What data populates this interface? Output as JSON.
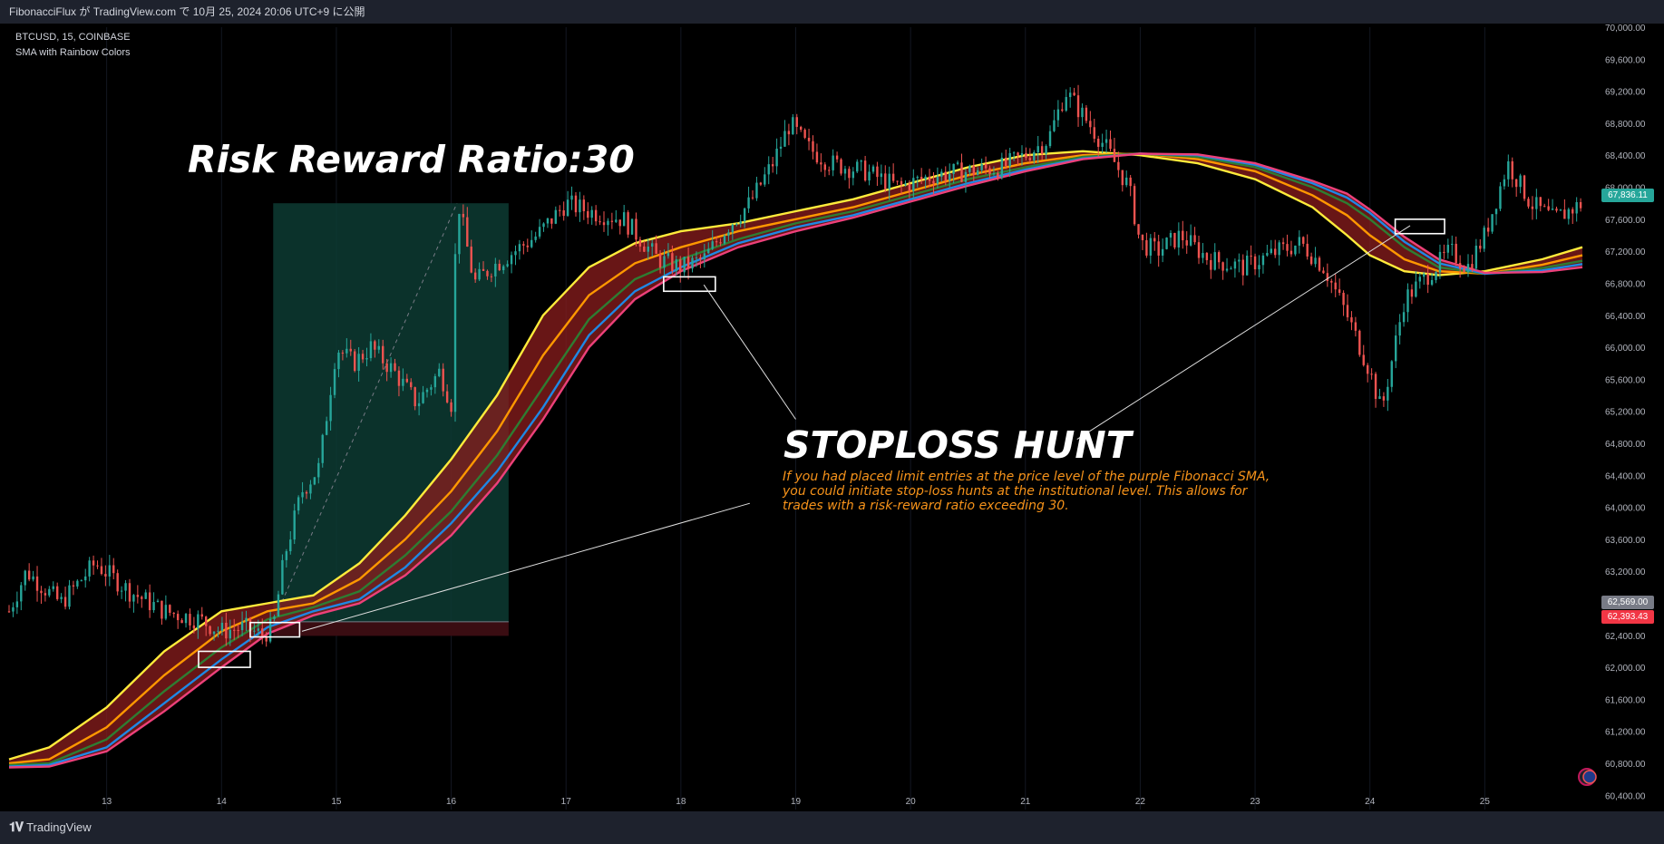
{
  "header": {
    "publish_info": "FibonacciFlux が TradingView.com で 10月 25, 2024 20:06 UTC+9 に公開"
  },
  "legend": {
    "symbol_line": "BTCUSD, 15, COINBASE",
    "indicator_name": "SMA with Rainbow Colors"
  },
  "annotations": {
    "risk_reward": "Risk Reward Ratio:30",
    "stoploss_title": "STOPLOSS HUNT",
    "stoploss_desc": "If you had placed limit entries at the price level of the purple Fibonacci SMA, you could initiate stop-loss hunts at the institutional level. This allows for trades with a risk-reward ratio exceeding 30."
  },
  "price_labels": {
    "current": "67,836.11",
    "entry": "62,569.00",
    "stop": "62,393.43"
  },
  "footer": {
    "brand": "TradingView"
  },
  "colors": {
    "background": "#000000",
    "bar": "#1e222d",
    "up_candle": "#26a69a",
    "down_candle": "#ef5350",
    "band_fill": "#8b1e1e",
    "sma_yellow": "#ffeb3b",
    "sma_orange": "#ff9800",
    "sma_green": "#2e7d32",
    "sma_blue": "#1e88e5",
    "sma_pink": "#ec407a",
    "profit_zone": "#0d3b33",
    "loss_zone": "#3a0d12",
    "current_label": "#26a69a",
    "entry_label": "#787b86",
    "stop_label": "#f23645"
  },
  "chart_data": {
    "type": "candlestick",
    "symbol": "BTCUSD",
    "interval": "15",
    "exchange": "COINBASE",
    "x_ticks": [
      "13",
      "14",
      "15",
      "16",
      "17",
      "18",
      "19",
      "20",
      "21",
      "22",
      "23",
      "24",
      "25"
    ],
    "y_ticks": [
      "60,400.00",
      "60,800.00",
      "61,200.00",
      "61,600.00",
      "62,000.00",
      "62,400.00",
      "62,800.00",
      "63,200.00",
      "63,600.00",
      "64,000.00",
      "64,400.00",
      "64,800.00",
      "65,200.00",
      "65,600.00",
      "66,000.00",
      "66,400.00",
      "66,800.00",
      "67,200.00",
      "67,600.00",
      "68,000.00",
      "68,400.00",
      "68,800.00",
      "69,200.00",
      "69,600.00",
      "70,000.00"
    ],
    "ylim": [
      60200,
      70000
    ],
    "xlim": [
      12.15,
      25.85
    ],
    "price_path": [
      [
        12.15,
        62700
      ],
      [
        12.3,
        63200
      ],
      [
        12.6,
        62800
      ],
      [
        12.9,
        63300
      ],
      [
        13.2,
        62950
      ],
      [
        13.5,
        62700
      ],
      [
        13.8,
        62600
      ],
      [
        14.0,
        62450
      ],
      [
        14.2,
        62500
      ],
      [
        14.35,
        62400
      ],
      [
        14.45,
        62500
      ],
      [
        14.55,
        63400
      ],
      [
        14.7,
        64200
      ],
      [
        14.85,
        64500
      ],
      [
        15.0,
        66000
      ],
      [
        15.15,
        65800
      ],
      [
        15.3,
        66000
      ],
      [
        15.5,
        65700
      ],
      [
        15.7,
        65300
      ],
      [
        15.9,
        65700
      ],
      [
        16.0,
        65300
      ],
      [
        16.05,
        67900
      ],
      [
        16.2,
        66800
      ],
      [
        16.35,
        67000
      ],
      [
        16.55,
        67200
      ],
      [
        16.75,
        67400
      ],
      [
        17.0,
        67800
      ],
      [
        17.2,
        67700
      ],
      [
        17.5,
        67600
      ],
      [
        17.8,
        67100
      ],
      [
        18.0,
        67000
      ],
      [
        18.2,
        67100
      ],
      [
        18.4,
        67500
      ],
      [
        18.6,
        67800
      ],
      [
        18.8,
        68300
      ],
      [
        18.95,
        68800
      ],
      [
        19.1,
        68500
      ],
      [
        19.3,
        68300
      ],
      [
        19.6,
        68200
      ],
      [
        19.9,
        68000
      ],
      [
        20.2,
        68150
      ],
      [
        20.5,
        68200
      ],
      [
        20.8,
        68250
      ],
      [
        21.0,
        68400
      ],
      [
        21.2,
        68600
      ],
      [
        21.35,
        69200
      ],
      [
        21.5,
        68900
      ],
      [
        21.7,
        68500
      ],
      [
        21.9,
        68000
      ],
      [
        22.0,
        67300
      ],
      [
        22.15,
        67200
      ],
      [
        22.35,
        67400
      ],
      [
        22.6,
        67100
      ],
      [
        22.9,
        67000
      ],
      [
        23.2,
        67200
      ],
      [
        23.4,
        67300
      ],
      [
        23.6,
        67000
      ],
      [
        23.8,
        66400
      ],
      [
        24.0,
        65700
      ],
      [
        24.1,
        65200
      ],
      [
        24.3,
        66600
      ],
      [
        24.5,
        66900
      ],
      [
        24.7,
        67200
      ],
      [
        24.85,
        67000
      ],
      [
        25.0,
        67400
      ],
      [
        25.2,
        68300
      ],
      [
        25.4,
        67800
      ],
      [
        25.6,
        67600
      ],
      [
        25.85,
        67800
      ]
    ],
    "sma_lines": [
      {
        "name": "yellow",
        "color": "#ffeb3b",
        "points": [
          [
            12.15,
            60850
          ],
          [
            12.5,
            61000
          ],
          [
            13.0,
            61500
          ],
          [
            13.5,
            62200
          ],
          [
            14.0,
            62700
          ],
          [
            14.4,
            62800
          ],
          [
            14.8,
            62900
          ],
          [
            15.2,
            63300
          ],
          [
            15.6,
            63900
          ],
          [
            16.0,
            64600
          ],
          [
            16.4,
            65400
          ],
          [
            16.8,
            66400
          ],
          [
            17.2,
            67000
          ],
          [
            17.6,
            67300
          ],
          [
            18.0,
            67450
          ],
          [
            18.5,
            67550
          ],
          [
            19.0,
            67700
          ],
          [
            19.5,
            67850
          ],
          [
            20.0,
            68050
          ],
          [
            20.5,
            68250
          ],
          [
            21.0,
            68400
          ],
          [
            21.5,
            68450
          ],
          [
            22.0,
            68400
          ],
          [
            22.5,
            68300
          ],
          [
            23.0,
            68100
          ],
          [
            23.5,
            67750
          ],
          [
            23.8,
            67400
          ],
          [
            24.0,
            67150
          ],
          [
            24.3,
            66950
          ],
          [
            24.6,
            66900
          ],
          [
            25.0,
            66950
          ],
          [
            25.5,
            67100
          ],
          [
            25.85,
            67250
          ]
        ]
      },
      {
        "name": "orange",
        "color": "#ff9800",
        "points": [
          [
            12.15,
            60800
          ],
          [
            12.5,
            60850
          ],
          [
            13.0,
            61250
          ],
          [
            13.5,
            61900
          ],
          [
            14.0,
            62450
          ],
          [
            14.4,
            62700
          ],
          [
            14.8,
            62800
          ],
          [
            15.2,
            63100
          ],
          [
            15.6,
            63600
          ],
          [
            16.0,
            64200
          ],
          [
            16.4,
            64950
          ],
          [
            16.8,
            65900
          ],
          [
            17.2,
            66650
          ],
          [
            17.6,
            67050
          ],
          [
            18.0,
            67250
          ],
          [
            18.5,
            67450
          ],
          [
            19.0,
            67600
          ],
          [
            19.5,
            67750
          ],
          [
            20.0,
            67950
          ],
          [
            20.5,
            68150
          ],
          [
            21.0,
            68300
          ],
          [
            21.5,
            68400
          ],
          [
            22.0,
            68420
          ],
          [
            22.5,
            68350
          ],
          [
            23.0,
            68200
          ],
          [
            23.5,
            67900
          ],
          [
            23.8,
            67650
          ],
          [
            24.0,
            67400
          ],
          [
            24.3,
            67100
          ],
          [
            24.6,
            66950
          ],
          [
            25.0,
            66920
          ],
          [
            25.5,
            67030
          ],
          [
            25.85,
            67150
          ]
        ]
      },
      {
        "name": "green",
        "color": "#2e7d32",
        "points": [
          [
            12.15,
            60780
          ],
          [
            12.5,
            60800
          ],
          [
            13.0,
            61100
          ],
          [
            13.5,
            61700
          ],
          [
            14.0,
            62250
          ],
          [
            14.4,
            62600
          ],
          [
            14.8,
            62750
          ],
          [
            15.2,
            62950
          ],
          [
            15.6,
            63400
          ],
          [
            16.0,
            63950
          ],
          [
            16.4,
            64650
          ],
          [
            16.8,
            65500
          ],
          [
            17.2,
            66350
          ],
          [
            17.6,
            66850
          ],
          [
            18.0,
            67100
          ],
          [
            18.5,
            67350
          ],
          [
            19.0,
            67550
          ],
          [
            19.5,
            67700
          ],
          [
            20.0,
            67900
          ],
          [
            20.5,
            68100
          ],
          [
            21.0,
            68250
          ],
          [
            21.5,
            68380
          ],
          [
            22.0,
            68420
          ],
          [
            22.5,
            68380
          ],
          [
            23.0,
            68250
          ],
          [
            23.5,
            68000
          ],
          [
            23.8,
            67800
          ],
          [
            24.0,
            67600
          ],
          [
            24.3,
            67250
          ],
          [
            24.6,
            67000
          ],
          [
            25.0,
            66920
          ],
          [
            25.5,
            66990
          ],
          [
            25.85,
            67080
          ]
        ]
      },
      {
        "name": "blue",
        "color": "#1e88e5",
        "points": [
          [
            12.15,
            60760
          ],
          [
            12.5,
            60780
          ],
          [
            13.0,
            61000
          ],
          [
            13.5,
            61550
          ],
          [
            14.0,
            62100
          ],
          [
            14.4,
            62500
          ],
          [
            14.8,
            62700
          ],
          [
            15.2,
            62850
          ],
          [
            15.6,
            63250
          ],
          [
            16.0,
            63800
          ],
          [
            16.4,
            64450
          ],
          [
            16.8,
            65250
          ],
          [
            17.2,
            66150
          ],
          [
            17.6,
            66700
          ],
          [
            18.0,
            67000
          ],
          [
            18.5,
            67300
          ],
          [
            19.0,
            67500
          ],
          [
            19.5,
            67650
          ],
          [
            20.0,
            67850
          ],
          [
            20.5,
            68050
          ],
          [
            21.0,
            68220
          ],
          [
            21.5,
            68360
          ],
          [
            22.0,
            68420
          ],
          [
            22.5,
            68400
          ],
          [
            23.0,
            68280
          ],
          [
            23.5,
            68050
          ],
          [
            23.8,
            67870
          ],
          [
            24.0,
            67680
          ],
          [
            24.3,
            67320
          ],
          [
            24.6,
            67050
          ],
          [
            25.0,
            66920
          ],
          [
            25.5,
            66960
          ],
          [
            25.85,
            67040
          ]
        ]
      },
      {
        "name": "pink",
        "color": "#ec407a",
        "points": [
          [
            12.15,
            60750
          ],
          [
            12.5,
            60760
          ],
          [
            13.0,
            60950
          ],
          [
            13.5,
            61450
          ],
          [
            14.0,
            62000
          ],
          [
            14.4,
            62420
          ],
          [
            14.8,
            62650
          ],
          [
            15.2,
            62800
          ],
          [
            15.6,
            63150
          ],
          [
            16.0,
            63650
          ],
          [
            16.4,
            64300
          ],
          [
            16.8,
            65100
          ],
          [
            17.2,
            66000
          ],
          [
            17.6,
            66600
          ],
          [
            18.0,
            66950
          ],
          [
            18.5,
            67250
          ],
          [
            19.0,
            67450
          ],
          [
            19.5,
            67620
          ],
          [
            20.0,
            67820
          ],
          [
            20.5,
            68020
          ],
          [
            21.0,
            68200
          ],
          [
            21.5,
            68350
          ],
          [
            22.0,
            68420
          ],
          [
            22.5,
            68410
          ],
          [
            23.0,
            68300
          ],
          [
            23.5,
            68080
          ],
          [
            23.8,
            67920
          ],
          [
            24.0,
            67720
          ],
          [
            24.3,
            67380
          ],
          [
            24.6,
            67100
          ],
          [
            25.0,
            66930
          ],
          [
            25.5,
            66940
          ],
          [
            25.85,
            67000
          ]
        ]
      }
    ],
    "position_tool": {
      "x_start": 14.45,
      "x_end": 16.5,
      "entry": 62569,
      "stop": 62393.43,
      "target": 67800
    },
    "highlight_boxes": [
      {
        "x0": 13.8,
        "x1": 14.25,
        "y0": 62000,
        "y1": 62200
      },
      {
        "x0": 14.25,
        "x1": 14.68,
        "y0": 62380,
        "y1": 62560
      },
      {
        "x0": 17.85,
        "x1": 18.3,
        "y0": 66700,
        "y1": 66880
      },
      {
        "x0": 24.22,
        "x1": 24.65,
        "y0": 67420,
        "y1": 67600
      }
    ],
    "pointer_lines": [
      {
        "from": [
          18.2,
          66780
        ],
        "to": [
          19.0,
          65100
        ]
      },
      {
        "from": [
          14.7,
          62450
        ],
        "to": [
          18.6,
          64050
        ]
      },
      {
        "from": [
          24.35,
          67520
        ],
        "to": [
          21.45,
          64850
        ]
      }
    ]
  }
}
